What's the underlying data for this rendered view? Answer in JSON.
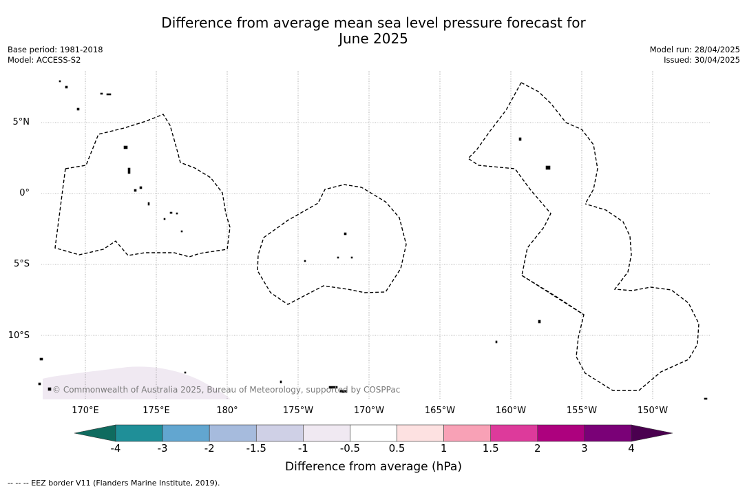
{
  "title_line1": "Difference from average mean sea level pressure forecast for",
  "title_line2": "June 2025",
  "meta_left": [
    "Base period: 1981-2018",
    "Model: ACCESS-S2"
  ],
  "meta_right": [
    "Model run: 28/04/2025",
    "Issued: 30/04/2025"
  ],
  "lat_labels": [
    "5°N",
    "0°",
    "5°S",
    "10°S"
  ],
  "lon_labels": [
    "170°E",
    "175°E",
    "180°",
    "175°W",
    "170°W",
    "165°W",
    "160°W",
    "155°W",
    "150°W"
  ],
  "copyright": "© Commonwealth of Australia 2025, Bureau of Meteorology, supported by COSPPac",
  "colorbar": {
    "title": "Difference from average (hPa)",
    "ticks": [
      "-4",
      "-3",
      "-2",
      "-1.5",
      "-1",
      "-0.5",
      "0.5",
      "1",
      "1.5",
      "2",
      "3",
      "4"
    ],
    "colors": [
      "#0f6b5f",
      "#1f8f98",
      "#62a6d0",
      "#a6bbdd",
      "#cfd0e6",
      "#f0e9f2",
      "#ffffff",
      "#fde1e1",
      "#f8a1b6",
      "#dd3a9b",
      "#ad017e",
      "#7a0177",
      "#4a004f"
    ]
  },
  "map_shading_color": "#f0e9f2",
  "footnote": "--  --  -- EEZ border V11 (Flanders Marine Institute, 2019)."
}
